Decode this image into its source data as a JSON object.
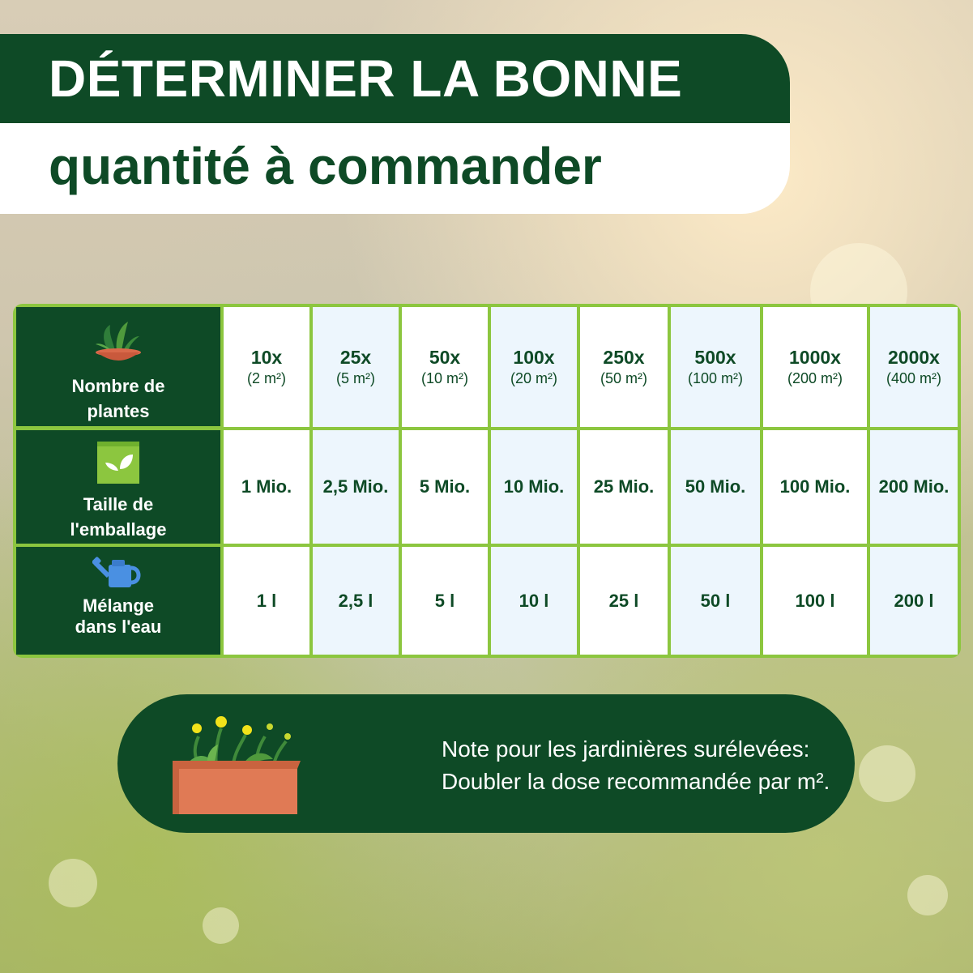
{
  "title": {
    "line1": "DÉTERMINER LA BONNE",
    "line2": "quantité à commander"
  },
  "table": {
    "row_headers": [
      {
        "label_line1": "Nombre de",
        "label_line2": "plantes",
        "icon": "potted-plant-icon"
      },
      {
        "label_line1": "Taille de",
        "label_line2": "l'emballage",
        "icon": "package-leaf-icon"
      },
      {
        "label_line1": "Mélange",
        "label_line2": "dans l'eau",
        "icon": "watering-can-icon"
      }
    ],
    "plants": [
      {
        "count": "10x",
        "area": "(2 m²)"
      },
      {
        "count": "25x",
        "area": "(5 m²)"
      },
      {
        "count": "50x",
        "area": "(10 m²)"
      },
      {
        "count": "100x",
        "area": "(20 m²)"
      },
      {
        "count": "250x",
        "area": "(50 m²)"
      },
      {
        "count": "500x",
        "area": "(100 m²)"
      },
      {
        "count": "1000x",
        "area": "(200 m²)"
      },
      {
        "count": "2000x",
        "area": "(400 m²)"
      }
    ],
    "package": [
      "1 Mio.",
      "2,5 Mio.",
      "5 Mio.",
      "10 Mio.",
      "25 Mio.",
      "50 Mio.",
      "100 Mio.",
      "200 Mio."
    ],
    "water": [
      "1 l",
      "2,5 l",
      "5 l",
      "10 l",
      "25 l",
      "50 l",
      "100 l",
      "200 l"
    ]
  },
  "note": {
    "line1": "Note pour les jardinières surélevées:",
    "line2": "Doubler la dose recommandée par m².",
    "icon": "raised-planter-icon"
  },
  "colors": {
    "dark_green": "#0e4a26",
    "light_green": "#8cc63f",
    "cell_blue": "#edf6fd",
    "planter_orange": "#e07a55"
  }
}
